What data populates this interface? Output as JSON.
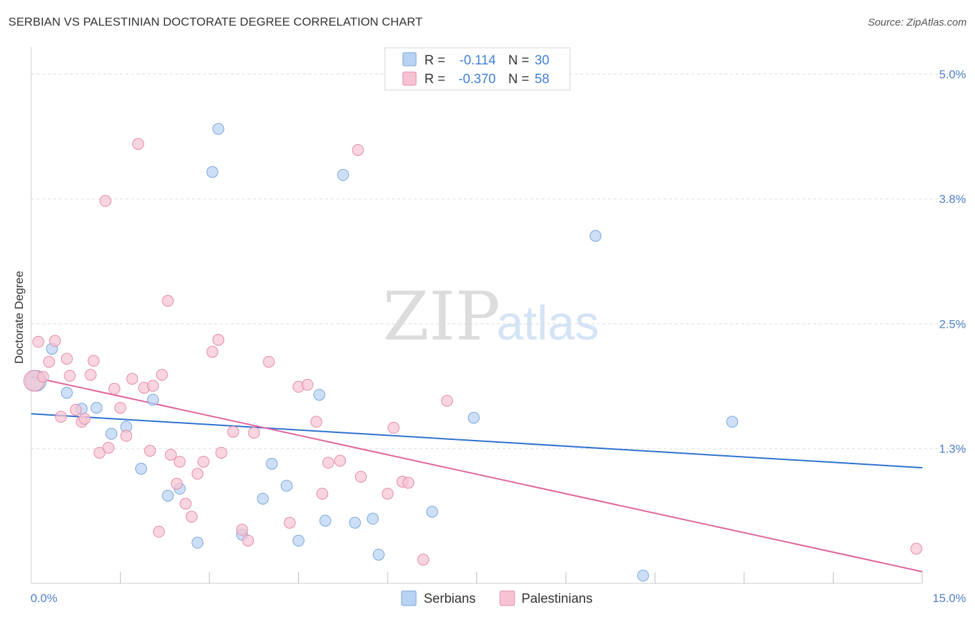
{
  "header": {
    "title": "SERBIAN VS PALESTINIAN DOCTORATE DEGREE CORRELATION CHART",
    "source": "Source: ZipAtlas.com"
  },
  "legend": {
    "rows": [
      {
        "r_label": "R =",
        "r_value": "-0.114",
        "n_label": "N =",
        "n_value": "30"
      },
      {
        "r_label": "R =",
        "r_value": "-0.370",
        "n_label": "N =",
        "n_value": "58"
      }
    ]
  },
  "bottom_legend": [
    "Serbians",
    "Palestinians"
  ],
  "watermark": {
    "zip": "ZIP",
    "atlas": "atlas"
  },
  "colors": {
    "serbians_fill": "#b8d2f2",
    "serbians_stroke": "#7aa6db",
    "serbians_line": "#2c6fcf",
    "palestinians_fill": "#f7c3d3",
    "palestinians_stroke": "#e48aa8",
    "palestinians_line": "#e0639a",
    "tick_label": "#4f7fc8",
    "grid": "#dcdcdc"
  },
  "chart_data": {
    "type": "scatter",
    "title": "SERBIAN VS PALESTINIAN DOCTORATE DEGREE CORRELATION CHART",
    "xlabel": "",
    "ylabel": "Doctorate Degree",
    "xlim": [
      0,
      15
    ],
    "ylim": [
      0,
      5.2
    ],
    "x_tick_labels": [
      "0.0%",
      "15.0%"
    ],
    "y_ticks": [
      1.25,
      2.5,
      3.75,
      5.0
    ],
    "y_tick_labels": [
      "1.3%",
      "2.5%",
      "3.8%",
      "5.0%"
    ],
    "grid": true,
    "series": [
      {
        "name": "Serbians",
        "r": -0.114,
        "n": 30,
        "trend": {
          "x": [
            0,
            15
          ],
          "y": [
            1.6,
            1.06
          ]
        },
        "points": [
          {
            "x": 0.08,
            "y": 1.93,
            "big": true
          },
          {
            "x": 0.35,
            "y": 2.25
          },
          {
            "x": 0.6,
            "y": 1.81
          },
          {
            "x": 0.85,
            "y": 1.65
          },
          {
            "x": 1.1,
            "y": 1.66
          },
          {
            "x": 1.35,
            "y": 1.4
          },
          {
            "x": 1.6,
            "y": 1.47
          },
          {
            "x": 1.85,
            "y": 1.05
          },
          {
            "x": 2.05,
            "y": 1.74
          },
          {
            "x": 2.3,
            "y": 0.78
          },
          {
            "x": 2.5,
            "y": 0.85
          },
          {
            "x": 2.8,
            "y": 0.31
          },
          {
            "x": 3.15,
            "y": 4.45
          },
          {
            "x": 3.05,
            "y": 4.02
          },
          {
            "x": 3.55,
            "y": 0.39
          },
          {
            "x": 3.9,
            "y": 0.75
          },
          {
            "x": 4.05,
            "y": 1.1
          },
          {
            "x": 4.3,
            "y": 0.88
          },
          {
            "x": 4.5,
            "y": 0.33
          },
          {
            "x": 4.85,
            "y": 1.79
          },
          {
            "x": 4.95,
            "y": 0.53
          },
          {
            "x": 5.25,
            "y": 3.99
          },
          {
            "x": 5.45,
            "y": 0.51
          },
          {
            "x": 5.75,
            "y": 0.55
          },
          {
            "x": 5.85,
            "y": 0.19
          },
          {
            "x": 6.75,
            "y": 0.62
          },
          {
            "x": 7.45,
            "y": 1.56
          },
          {
            "x": 9.5,
            "y": 3.38
          },
          {
            "x": 10.3,
            "y": -0.02
          },
          {
            "x": 11.8,
            "y": 1.52
          }
        ]
      },
      {
        "name": "Palestinians",
        "r": -0.37,
        "n": 58,
        "trend": {
          "x": [
            0,
            15
          ],
          "y": [
            1.97,
            0.02
          ]
        },
        "points": [
          {
            "x": 0.05,
            "y": 1.93,
            "big": true
          },
          {
            "x": 0.12,
            "y": 2.32
          },
          {
            "x": 0.2,
            "y": 1.97
          },
          {
            "x": 0.3,
            "y": 2.12
          },
          {
            "x": 0.4,
            "y": 2.33
          },
          {
            "x": 0.5,
            "y": 1.57
          },
          {
            "x": 0.6,
            "y": 2.15
          },
          {
            "x": 0.65,
            "y": 1.98
          },
          {
            "x": 0.75,
            "y": 1.64
          },
          {
            "x": 0.85,
            "y": 1.52
          },
          {
            "x": 0.9,
            "y": 1.55
          },
          {
            "x": 1.0,
            "y": 1.99
          },
          {
            "x": 1.05,
            "y": 2.13
          },
          {
            "x": 1.15,
            "y": 1.21
          },
          {
            "x": 1.3,
            "y": 1.26
          },
          {
            "x": 1.4,
            "y": 1.85
          },
          {
            "x": 1.5,
            "y": 1.66
          },
          {
            "x": 1.6,
            "y": 1.38
          },
          {
            "x": 1.7,
            "y": 1.95
          },
          {
            "x": 1.8,
            "y": 4.3
          },
          {
            "x": 1.9,
            "y": 1.86
          },
          {
            "x": 2.0,
            "y": 1.23
          },
          {
            "x": 2.05,
            "y": 1.88
          },
          {
            "x": 2.15,
            "y": 0.42
          },
          {
            "x": 2.2,
            "y": 1.99
          },
          {
            "x": 2.3,
            "y": 2.73
          },
          {
            "x": 2.35,
            "y": 1.19
          },
          {
            "x": 2.45,
            "y": 0.9
          },
          {
            "x": 2.5,
            "y": 1.12
          },
          {
            "x": 2.6,
            "y": 0.7
          },
          {
            "x": 2.7,
            "y": 0.57
          },
          {
            "x": 2.8,
            "y": 1.0
          },
          {
            "x": 2.9,
            "y": 1.12
          },
          {
            "x": 3.05,
            "y": 2.22
          },
          {
            "x": 3.15,
            "y": 2.34
          },
          {
            "x": 3.2,
            "y": 1.21
          },
          {
            "x": 3.4,
            "y": 1.42
          },
          {
            "x": 3.55,
            "y": 0.44
          },
          {
            "x": 3.65,
            "y": 0.33
          },
          {
            "x": 3.75,
            "y": 1.41
          },
          {
            "x": 4.0,
            "y": 2.12
          },
          {
            "x": 4.35,
            "y": 0.51
          },
          {
            "x": 4.5,
            "y": 1.87
          },
          {
            "x": 4.65,
            "y": 1.89
          },
          {
            "x": 4.8,
            "y": 1.52
          },
          {
            "x": 4.9,
            "y": 0.8
          },
          {
            "x": 5.0,
            "y": 1.11
          },
          {
            "x": 5.2,
            "y": 1.13
          },
          {
            "x": 5.5,
            "y": 4.24
          },
          {
            "x": 5.55,
            "y": 0.97
          },
          {
            "x": 6.0,
            "y": 0.8
          },
          {
            "x": 6.1,
            "y": 1.46
          },
          {
            "x": 6.25,
            "y": 0.92
          },
          {
            "x": 6.35,
            "y": 0.91
          },
          {
            "x": 6.6,
            "y": 0.14
          },
          {
            "x": 7.0,
            "y": 1.73
          },
          {
            "x": 1.25,
            "y": 3.73
          },
          {
            "x": 14.9,
            "y": 0.25
          }
        ]
      }
    ]
  }
}
